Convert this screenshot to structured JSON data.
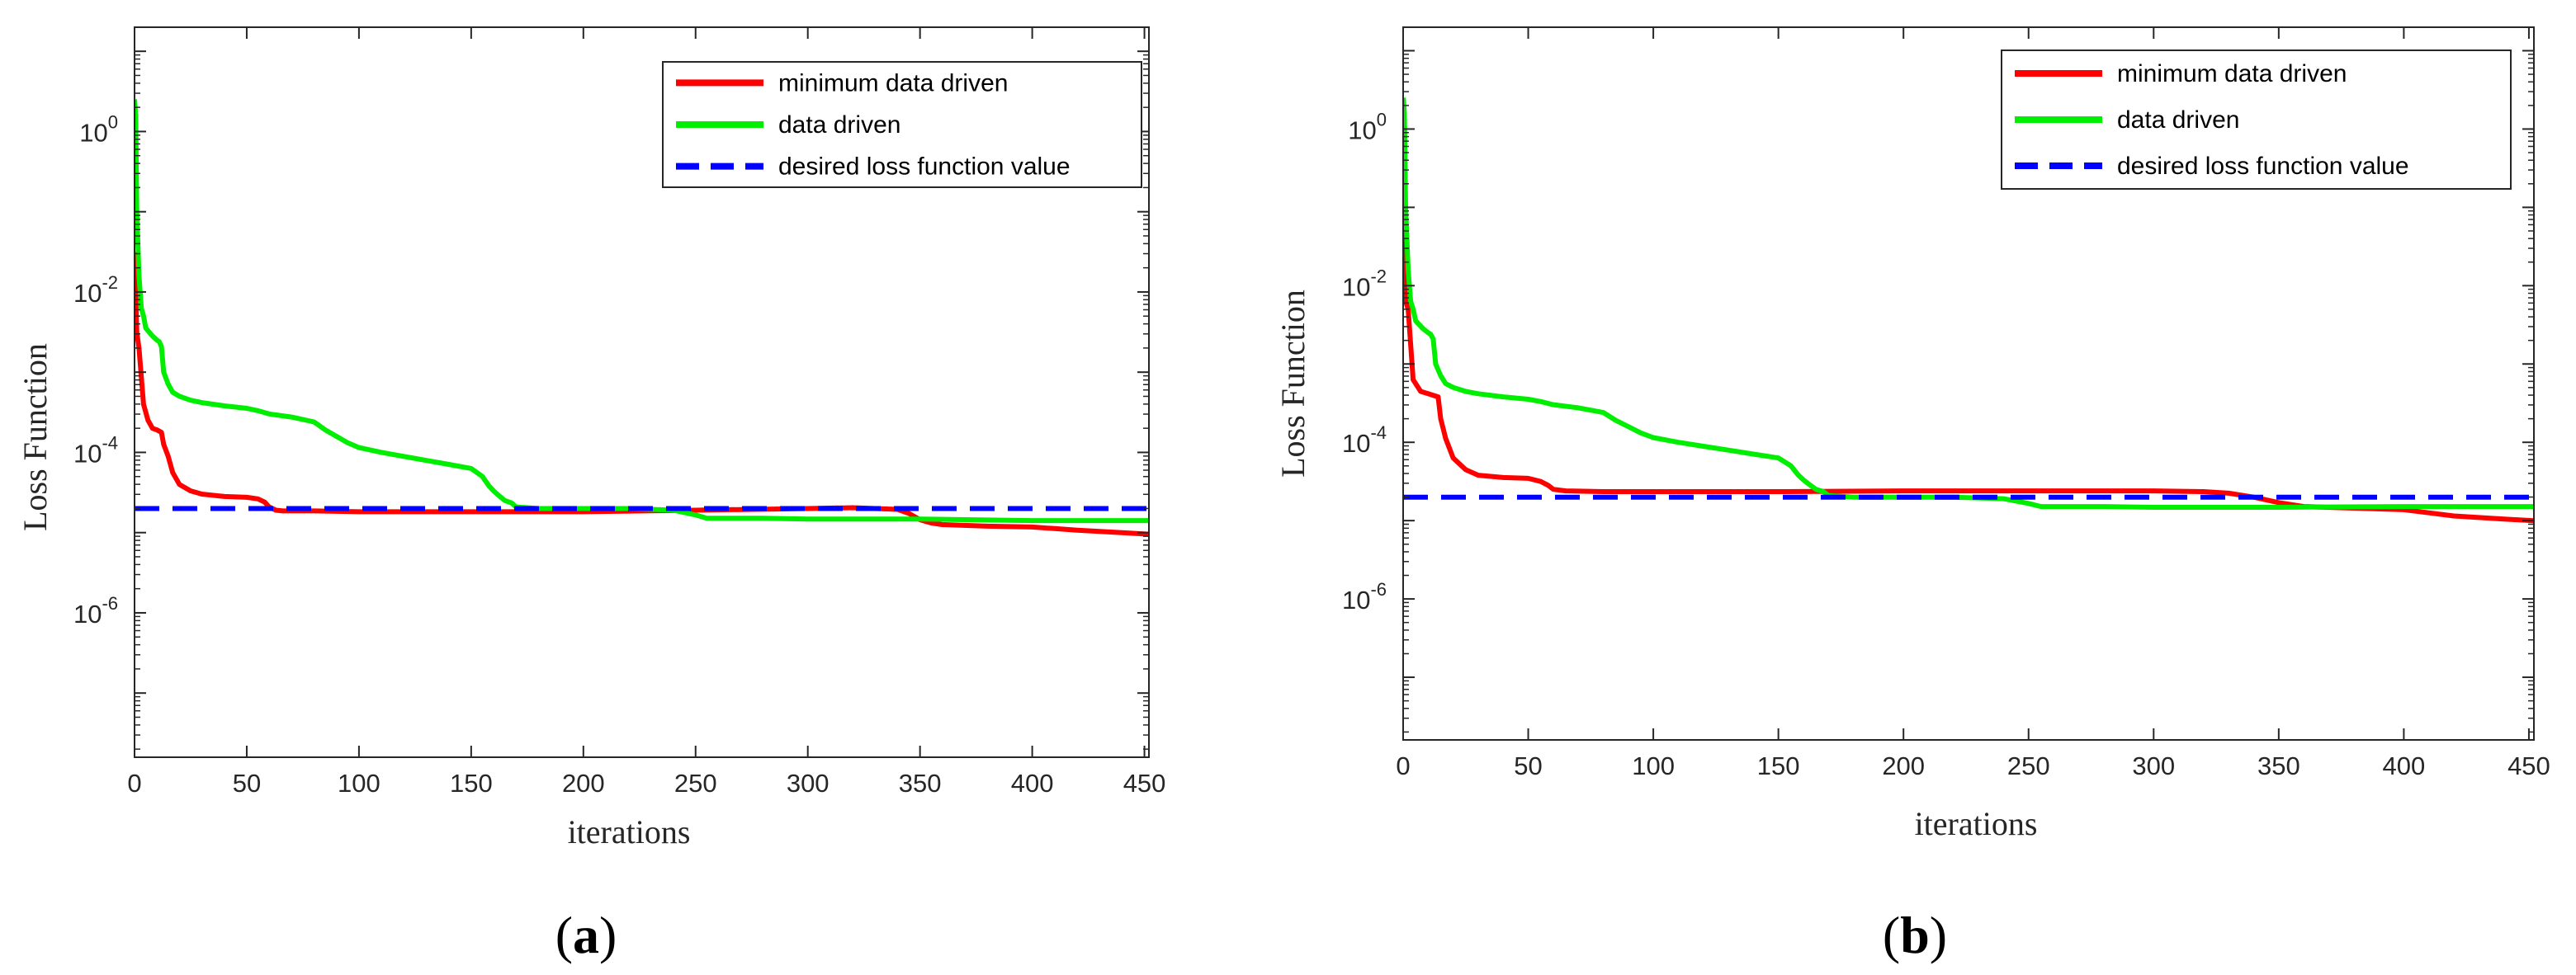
{
  "chart_data": [
    {
      "type": "line",
      "panel": "a",
      "caption_open": "(",
      "caption_letter": "a",
      "caption_close": ")",
      "xlabel": "iterations",
      "ylabel": "Loss Function",
      "yscale": "log",
      "xlim": [
        0,
        452
      ],
      "ylim_exp": [
        -7.8,
        1.3
      ],
      "x_ticks": [
        "0",
        "50",
        "100",
        "150",
        "200",
        "250",
        "300",
        "350",
        "400",
        "450"
      ],
      "y_ticks": [
        {
          "base": "10",
          "exp": "0",
          "value_exp": 0
        },
        {
          "base": "10",
          "exp": "-2",
          "value_exp": -2
        },
        {
          "base": "10",
          "exp": "-4",
          "value_exp": -4
        },
        {
          "base": "10",
          "exp": "-6",
          "value_exp": -6
        }
      ],
      "legend_position": "top-right",
      "series": [
        {
          "name": "minimum data driven",
          "color": "#ff0000",
          "style": "solid",
          "x": [
            0,
            1,
            2,
            4,
            6,
            8,
            10,
            12,
            13,
            15,
            17,
            20,
            25,
            30,
            40,
            50,
            55,
            58,
            60,
            63,
            66,
            80,
            100,
            150,
            200,
            250,
            300,
            320,
            340,
            345,
            350,
            355,
            360,
            380,
            400,
            410,
            420,
            440,
            452
          ],
          "log10_y": [
            -1.5,
            -2.5,
            -2.7,
            -3.4,
            -3.6,
            -3.7,
            -3.72,
            -3.75,
            -3.9,
            -4.05,
            -4.25,
            -4.4,
            -4.48,
            -4.52,
            -4.55,
            -4.56,
            -4.58,
            -4.62,
            -4.68,
            -4.72,
            -4.73,
            -4.73,
            -4.74,
            -4.74,
            -4.74,
            -4.72,
            -4.7,
            -4.69,
            -4.71,
            -4.76,
            -4.84,
            -4.88,
            -4.9,
            -4.92,
            -4.93,
            -4.95,
            -4.97,
            -5.0,
            -5.02
          ]
        },
        {
          "name": "data driven",
          "color": "#00ee00",
          "style": "solid",
          "x": [
            0,
            0.5,
            1,
            2,
            3,
            4,
            5,
            8,
            10,
            11,
            12,
            13,
            15,
            17,
            20,
            25,
            30,
            40,
            50,
            55,
            60,
            70,
            80,
            85,
            90,
            95,
            100,
            110,
            120,
            130,
            140,
            150,
            155,
            158,
            160,
            162,
            165,
            168,
            170,
            180,
            200,
            220,
            240,
            250,
            255,
            260,
            280,
            300,
            350,
            400,
            452
          ],
          "log10_y": [
            0.4,
            0.2,
            -1.0,
            -1.8,
            -2.2,
            -2.3,
            -2.45,
            -2.55,
            -2.6,
            -2.62,
            -2.68,
            -3.0,
            -3.15,
            -3.25,
            -3.3,
            -3.35,
            -3.38,
            -3.42,
            -3.45,
            -3.48,
            -3.52,
            -3.56,
            -3.62,
            -3.72,
            -3.8,
            -3.88,
            -3.94,
            -4.0,
            -4.05,
            -4.1,
            -4.15,
            -4.2,
            -4.3,
            -4.42,
            -4.48,
            -4.53,
            -4.6,
            -4.63,
            -4.68,
            -4.7,
            -4.7,
            -4.7,
            -4.72,
            -4.78,
            -4.82,
            -4.82,
            -4.82,
            -4.83,
            -4.83,
            -4.85,
            -4.85
          ]
        },
        {
          "name": "desired loss function value",
          "color": "#0000ff",
          "style": "dashed",
          "x": [
            0,
            452
          ],
          "log10_y": [
            -4.7,
            -4.7
          ]
        }
      ]
    },
    {
      "type": "line",
      "panel": "b",
      "caption_open": "(",
      "caption_letter": "b",
      "caption_close": ")",
      "xlabel": "iterations",
      "ylabel": "Loss Function",
      "yscale": "log",
      "xlim": [
        0,
        452
      ],
      "ylim_exp": [
        -7.8,
        1.3
      ],
      "x_ticks": [
        "0",
        "50",
        "100",
        "150",
        "200",
        "250",
        "300",
        "350",
        "400",
        "450"
      ],
      "y_ticks": [
        {
          "base": "10",
          "exp": "0",
          "value_exp": 0
        },
        {
          "base": "10",
          "exp": "-2",
          "value_exp": -2
        },
        {
          "base": "10",
          "exp": "-4",
          "value_exp": -4
        },
        {
          "base": "10",
          "exp": "-6",
          "value_exp": -6
        }
      ],
      "legend_position": "top-right",
      "series": [
        {
          "name": "minimum data driven",
          "color": "#ff0000",
          "style": "solid",
          "x": [
            0,
            1,
            2,
            4,
            6,
            7,
            10,
            12,
            14,
            15,
            17,
            20,
            25,
            30,
            40,
            50,
            55,
            58,
            60,
            65,
            80,
            100,
            150,
            200,
            250,
            300,
            320,
            330,
            340,
            350,
            360,
            380,
            400,
            410,
            420,
            440,
            452
          ],
          "log10_y": [
            -1.2,
            -2.2,
            -2.3,
            -3.2,
            -3.3,
            -3.35,
            -3.38,
            -3.4,
            -3.42,
            -3.7,
            -3.95,
            -4.2,
            -4.35,
            -4.42,
            -4.45,
            -4.46,
            -4.5,
            -4.55,
            -4.6,
            -4.62,
            -4.63,
            -4.63,
            -4.63,
            -4.62,
            -4.62,
            -4.62,
            -4.63,
            -4.65,
            -4.7,
            -4.77,
            -4.82,
            -4.84,
            -4.86,
            -4.9,
            -4.94,
            -4.98,
            -5.0
          ]
        },
        {
          "name": "data driven",
          "color": "#00ee00",
          "style": "solid",
          "x": [
            0,
            0.5,
            1,
            2,
            3,
            4,
            5,
            8,
            10,
            11,
            12,
            13,
            15,
            17,
            20,
            25,
            30,
            40,
            50,
            55,
            60,
            70,
            80,
            85,
            90,
            95,
            100,
            110,
            120,
            130,
            140,
            150,
            155,
            158,
            160,
            162,
            165,
            168,
            170,
            180,
            200,
            220,
            240,
            250,
            255,
            260,
            280,
            300,
            350,
            400,
            452
          ],
          "log10_y": [
            0.4,
            0.2,
            -1.0,
            -1.8,
            -2.2,
            -2.3,
            -2.45,
            -2.55,
            -2.6,
            -2.62,
            -2.68,
            -3.0,
            -3.15,
            -3.25,
            -3.3,
            -3.35,
            -3.38,
            -3.42,
            -3.45,
            -3.48,
            -3.52,
            -3.56,
            -3.62,
            -3.72,
            -3.8,
            -3.88,
            -3.94,
            -4.0,
            -4.05,
            -4.1,
            -4.15,
            -4.2,
            -4.3,
            -4.42,
            -4.48,
            -4.53,
            -4.6,
            -4.63,
            -4.68,
            -4.7,
            -4.7,
            -4.7,
            -4.72,
            -4.78,
            -4.82,
            -4.82,
            -4.82,
            -4.83,
            -4.83,
            -4.82,
            -4.82
          ]
        },
        {
          "name": "desired loss function value",
          "color": "#0000ff",
          "style": "dashed",
          "x": [
            0,
            452
          ],
          "log10_y": [
            -4.7,
            -4.7
          ]
        }
      ]
    }
  ]
}
